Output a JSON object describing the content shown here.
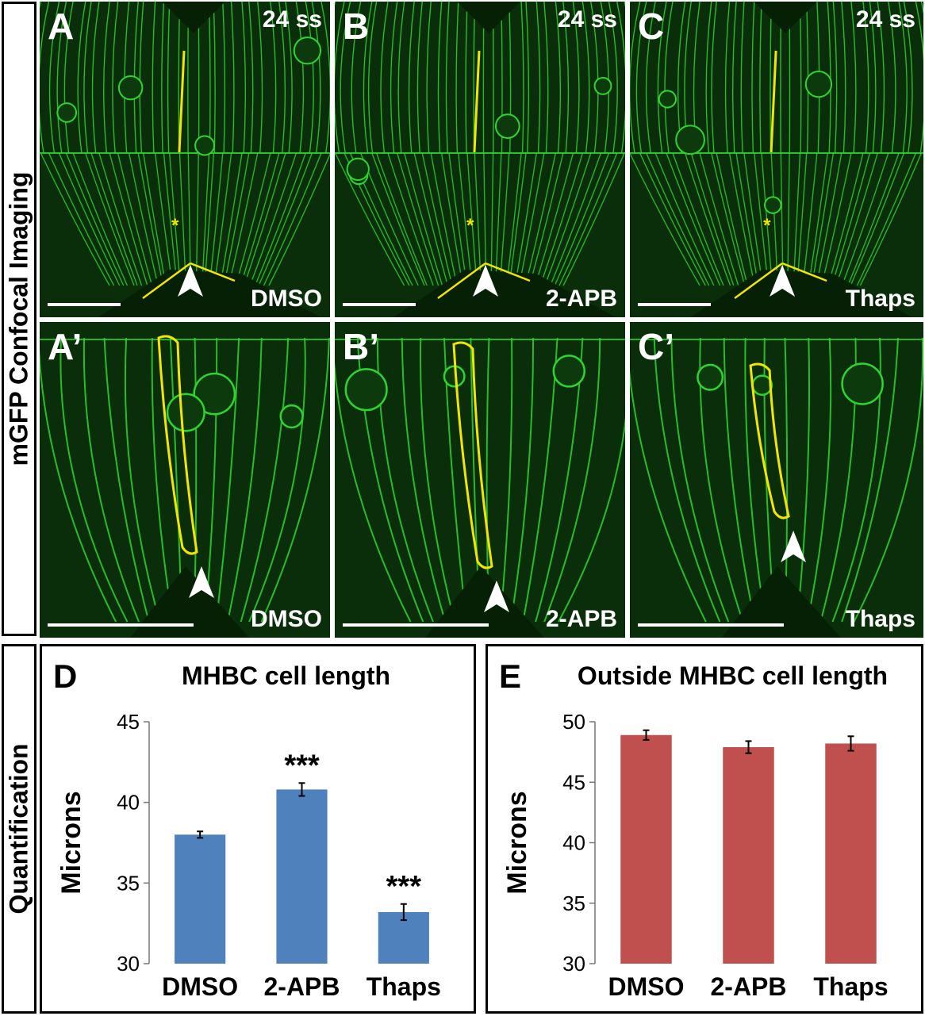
{
  "side_labels": {
    "imaging": "mGFP Confocal Imaging",
    "quant": "Quantification"
  },
  "panels": [
    {
      "letter": "A",
      "stage": "24 ss",
      "treatment": "DMSO"
    },
    {
      "letter": "B",
      "stage": "24 ss",
      "treatment": "2-APB"
    },
    {
      "letter": "C",
      "stage": "24 ss",
      "treatment": "Thaps"
    },
    {
      "letter": "A’",
      "stage": "",
      "treatment": "DMSO"
    },
    {
      "letter": "B’",
      "stage": "",
      "treatment": "2-APB"
    },
    {
      "letter": "C’",
      "stage": "",
      "treatment": "Thaps"
    }
  ],
  "colors": {
    "gfp": "#2fd42f",
    "marker": "#f2e600",
    "arrowhead": "#ffffff",
    "bar_d": "#4f81bd",
    "bar_e": "#c0504d"
  },
  "chart_data": [
    {
      "panel": "D",
      "type": "bar",
      "title": "MHBC cell length",
      "ylabel": "Microns",
      "categories": [
        "DMSO",
        "2-APB",
        "Thaps"
      ],
      "values": [
        38.0,
        40.8,
        33.2
      ],
      "errors": [
        0.2,
        0.4,
        0.5
      ],
      "annotations": [
        "",
        "***",
        "***"
      ],
      "ylim": [
        30,
        45
      ],
      "yticks": [
        30,
        35,
        40,
        45
      ]
    },
    {
      "panel": "E",
      "type": "bar",
      "title": "Outside MHBC cell length",
      "ylabel": "Microns",
      "categories": [
        "DMSO",
        "2-APB",
        "Thaps"
      ],
      "values": [
        48.9,
        47.9,
        48.2
      ],
      "errors": [
        0.4,
        0.5,
        0.6
      ],
      "annotations": [
        "",
        "",
        ""
      ],
      "ylim": [
        30,
        50
      ],
      "yticks": [
        30,
        35,
        40,
        45,
        50
      ]
    }
  ]
}
